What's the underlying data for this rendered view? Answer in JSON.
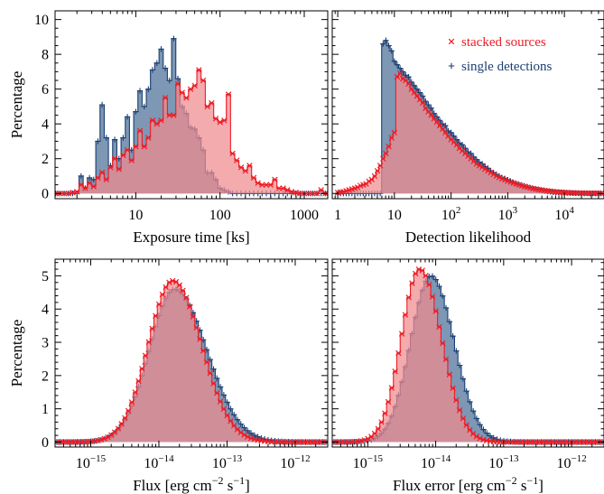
{
  "colors": {
    "stacked": "#ee1c25",
    "stacked_fill": "#f08a8f",
    "single": "#1b3f73",
    "single_fill": "#7d97b4"
  },
  "legend": {
    "stacked": "stacked sources",
    "single": "single detections"
  },
  "chart_data": [
    {
      "type": "area",
      "panel": "top-left",
      "xlabel": "Exposure time [ks]",
      "ylabel": "Percentage",
      "xscale": "log",
      "xlim": [
        1.1,
        1900
      ],
      "ylim": [
        -0.3,
        10.5
      ],
      "yticks": [
        0,
        2,
        4,
        6,
        8,
        10
      ],
      "xtick_labels": [
        "10",
        "100",
        "1000"
      ],
      "xticks": [
        10,
        100,
        1000
      ],
      "series": [
        {
          "key": "single",
          "x": [
            1.12,
            1.25,
            1.41,
            1.58,
            1.78,
            2.0,
            2.24,
            2.51,
            2.82,
            3.16,
            3.55,
            3.98,
            4.47,
            5.01,
            5.62,
            6.31,
            7.08,
            7.94,
            8.91,
            10.0,
            11.2,
            12.6,
            14.1,
            15.8,
            17.8,
            20.0,
            22.4,
            25.1,
            28.2,
            31.6,
            35.5,
            39.8,
            44.7,
            50.1,
            56.2,
            63.1,
            70.8,
            79.4,
            89.1,
            100,
            112,
            126,
            141,
            158,
            178,
            200,
            224,
            251,
            282,
            316,
            355,
            398,
            447,
            501,
            562,
            631,
            708,
            794,
            891,
            1000,
            1122,
            1259,
            1413,
            1585,
            1778
          ],
          "y": [
            0,
            0,
            0,
            0,
            0,
            0,
            1.0,
            0.3,
            0.9,
            0.8,
            3.0,
            5.1,
            3.2,
            1.6,
            3.1,
            2.0,
            3.2,
            4.4,
            2.5,
            4.7,
            5.9,
            5.0,
            6.0,
            7.1,
            7.5,
            8.3,
            7.2,
            6.5,
            8.9,
            6.6,
            5.0,
            4.6,
            3.8,
            3.7,
            3.2,
            2.5,
            1.2,
            1.2,
            0.8,
            0.3,
            0.2,
            0.1,
            0,
            0,
            0,
            0,
            0,
            0,
            0,
            0,
            0,
            0,
            0,
            0,
            0,
            0,
            0,
            0,
            0,
            0,
            0,
            0,
            0,
            0,
            0
          ]
        },
        {
          "key": "stacked",
          "x": [
            1.12,
            1.25,
            1.41,
            1.58,
            1.78,
            2.0,
            2.24,
            2.51,
            2.82,
            3.16,
            3.55,
            3.98,
            4.47,
            5.01,
            5.62,
            6.31,
            7.08,
            7.94,
            8.91,
            10.0,
            11.2,
            12.6,
            14.1,
            15.8,
            17.8,
            20.0,
            22.4,
            25.1,
            28.2,
            31.6,
            35.5,
            39.8,
            44.7,
            50.1,
            56.2,
            63.1,
            70.8,
            79.4,
            89.1,
            100,
            112,
            126,
            141,
            158,
            178,
            200,
            224,
            251,
            282,
            316,
            355,
            398,
            447,
            501,
            562,
            631,
            708,
            794,
            891,
            1000,
            1122,
            1259,
            1413,
            1585,
            1778
          ],
          "y": [
            0,
            0,
            0,
            0,
            0.05,
            0.1,
            0.5,
            0.3,
            0.6,
            0.4,
            0.9,
            1.2,
            0.8,
            1.5,
            2.0,
            1.4,
            2.2,
            2.5,
            1.9,
            2.7,
            3.6,
            2.7,
            3.2,
            4.2,
            4.0,
            4.2,
            5.5,
            4.5,
            4.5,
            6.3,
            5.8,
            5.5,
            6.0,
            6.2,
            7.1,
            6.5,
            5.0,
            5.2,
            4.3,
            4.1,
            4.2,
            5.7,
            2.3,
            1.9,
            1.5,
            1.3,
            1.6,
            0.9,
            0.6,
            0.5,
            0.5,
            0.5,
            0.8,
            0.3,
            0.3,
            0.2,
            0.1,
            0.05,
            0,
            0,
            0,
            0,
            0,
            0.2,
            0
          ]
        }
      ]
    },
    {
      "type": "area",
      "panel": "top-right",
      "xlabel": "Detection likelihood",
      "xscale": "log",
      "xlim": [
        0.8,
        50000
      ],
      "ylim": [
        -0.3,
        10.5
      ],
      "yticks": [
        0,
        2,
        4,
        6,
        8,
        10
      ],
      "xtick_labels": [
        {
          "base": "1",
          "exp": ""
        },
        {
          "base": "10",
          "exp": ""
        },
        {
          "base": "10",
          "exp": "2"
        },
        {
          "base": "10",
          "exp": "3"
        },
        {
          "base": "10",
          "exp": "4"
        }
      ],
      "xticks": [
        1,
        10,
        100,
        1000,
        10000
      ],
      "series": [
        {
          "key": "single",
          "x": [
            1,
            1.12,
            1.26,
            1.41,
            1.58,
            1.78,
            2,
            2.24,
            2.51,
            2.82,
            3.16,
            3.55,
            3.98,
            4.47,
            5.01,
            5.62,
            6.31,
            7.08,
            7.94,
            8.91,
            10,
            11.2,
            12.6,
            14.1,
            15.8,
            17.8,
            20,
            22.4,
            25.1,
            28.2,
            31.6,
            35.5,
            39.8,
            44.7,
            50.1,
            56.2,
            63.1,
            70.8,
            79.4,
            89.1,
            100,
            112,
            126,
            141,
            158,
            178,
            200,
            224,
            251,
            282,
            316,
            355,
            398,
            447,
            501,
            562,
            631,
            708,
            794,
            891,
            1000,
            1122,
            1259,
            1413,
            1585,
            1778,
            1995,
            2239,
            2512,
            2818,
            3162,
            3548,
            3981,
            4467,
            5012,
            5623,
            6310,
            7079,
            7943,
            8913,
            10000,
            11220,
            12590,
            14130,
            15850,
            17780,
            19950,
            22390,
            25120,
            28180,
            31620,
            35480,
            39810,
            44670
          ],
          "y": [
            0,
            0,
            0,
            0,
            0,
            0,
            0,
            0,
            0,
            0,
            0,
            0,
            0,
            0,
            0,
            0,
            8.6,
            8.8,
            8.5,
            8.2,
            7.6,
            7.4,
            7.2,
            7.0,
            6.8,
            6.7,
            6.4,
            6.2,
            6.0,
            5.8,
            5.6,
            5.3,
            5.1,
            4.9,
            4.6,
            4.4,
            4.2,
            4.0,
            3.9,
            3.6,
            3.5,
            3.3,
            3.1,
            2.9,
            2.8,
            2.6,
            2.4,
            2.3,
            2.1,
            1.95,
            1.8,
            1.7,
            1.55,
            1.45,
            1.3,
            1.2,
            1.1,
            1.0,
            0.9,
            0.85,
            0.78,
            0.7,
            0.62,
            0.56,
            0.5,
            0.45,
            0.4,
            0.35,
            0.3,
            0.27,
            0.24,
            0.2,
            0.17,
            0.14,
            0.12,
            0.1,
            0.08,
            0.07,
            0.06,
            0.05,
            0.04,
            0.03,
            0.03,
            0.02,
            0.02,
            0.01,
            0.01,
            0.01,
            0.01,
            0,
            0,
            0,
            0,
            0
          ]
        },
        {
          "key": "stacked",
          "x": [
            1,
            1.12,
            1.26,
            1.41,
            1.58,
            1.78,
            2,
            2.24,
            2.51,
            2.82,
            3.16,
            3.55,
            3.98,
            4.47,
            5.01,
            5.62,
            6.31,
            7.08,
            7.94,
            8.91,
            10,
            11.2,
            12.6,
            14.1,
            15.8,
            17.8,
            20,
            22.4,
            25.1,
            28.2,
            31.6,
            35.5,
            39.8,
            44.7,
            50.1,
            56.2,
            63.1,
            70.8,
            79.4,
            89.1,
            100,
            112,
            126,
            141,
            158,
            178,
            200,
            224,
            251,
            282,
            316,
            355,
            398,
            447,
            501,
            562,
            631,
            708,
            794,
            891,
            1000,
            1122,
            1259,
            1413,
            1585,
            1778,
            1995,
            2239,
            2512,
            2818,
            3162,
            3548,
            3981,
            4467,
            5012,
            5623,
            6310,
            7079,
            7943,
            8913,
            10000,
            11220,
            12590,
            14130,
            15850,
            17780,
            19950,
            22390,
            25120,
            28180,
            31620,
            35480,
            39810,
            44670
          ],
          "y": [
            0.05,
            0.08,
            0.1,
            0.15,
            0.2,
            0.25,
            0.3,
            0.35,
            0.45,
            0.5,
            0.55,
            0.7,
            0.8,
            1.0,
            1.3,
            1.6,
            2.0,
            2.3,
            2.7,
            3.2,
            3.5,
            6.7,
            6.9,
            6.6,
            6.5,
            6.3,
            6.0,
            5.8,
            5.6,
            5.4,
            5.2,
            4.9,
            4.7,
            4.5,
            4.3,
            4.1,
            3.9,
            3.7,
            3.5,
            3.3,
            3.1,
            2.95,
            2.8,
            2.6,
            2.45,
            2.3,
            2.15,
            2.0,
            1.85,
            1.7,
            1.6,
            1.5,
            1.4,
            1.3,
            1.2,
            1.1,
            1.0,
            0.92,
            0.85,
            0.78,
            0.72,
            0.66,
            0.6,
            0.55,
            0.5,
            0.45,
            0.4,
            0.36,
            0.32,
            0.28,
            0.25,
            0.22,
            0.2,
            0.17,
            0.15,
            0.13,
            0.11,
            0.09,
            0.08,
            0.07,
            0.06,
            0.05,
            0.04,
            0.03,
            0.03,
            0.02,
            0.02,
            0.02,
            0.01,
            0.01,
            0.01,
            0.01,
            0.01,
            0.01
          ]
        }
      ]
    },
    {
      "type": "area",
      "panel": "bottom-left",
      "xlabel_parts": [
        "Flux [erg cm",
        "−2",
        " s",
        "−1",
        "]"
      ],
      "ylabel": "Percentage",
      "xscale": "log",
      "xlim": [
        3e-16,
        3e-12
      ],
      "ylim": [
        -0.15,
        5.5
      ],
      "yticks": [
        0,
        1,
        2,
        3,
        4,
        5
      ],
      "xticks": [
        1e-15,
        1e-14,
        1e-13,
        1e-12
      ],
      "xtick_labels": [
        {
          "base": "10",
          "exp": "−15"
        },
        {
          "base": "10",
          "exp": "−14"
        },
        {
          "base": "10",
          "exp": "−13"
        },
        {
          "base": "10",
          "exp": "−12"
        }
      ],
      "series": [
        {
          "key": "single",
          "lognormal": {
            "peak": 4.6,
            "center": 1.7e-14,
            "sigma_dex_left": 0.37,
            "sigma_dex_right": 0.47,
            "n_bins": 80
          }
        },
        {
          "key": "stacked",
          "lognormal": {
            "peak": 4.85,
            "center": 1.6e-14,
            "sigma_dex_left": 0.36,
            "sigma_dex_right": 0.42,
            "n_bins": 80
          }
        }
      ]
    },
    {
      "type": "area",
      "panel": "bottom-right",
      "xlabel_parts": [
        "Flux error [erg cm",
        "−2",
        " s",
        "−1",
        "]"
      ],
      "xscale": "log",
      "xlim": [
        3e-16,
        3e-12
      ],
      "ylim": [
        -0.15,
        5.5
      ],
      "yticks": [
        0,
        1,
        2,
        3,
        4,
        5
      ],
      "xticks": [
        1e-15,
        1e-14,
        1e-13,
        1e-12
      ],
      "xtick_labels": [
        {
          "base": "10",
          "exp": "−15"
        },
        {
          "base": "10",
          "exp": "−14"
        },
        {
          "base": "10",
          "exp": "−13"
        },
        {
          "base": "10",
          "exp": "−12"
        }
      ],
      "series": [
        {
          "key": "single",
          "lognormal": {
            "peak": 5.0,
            "center": 8.5e-15,
            "sigma_dex_left": 0.3,
            "sigma_dex_right": 0.34,
            "n_bins": 80
          }
        },
        {
          "key": "stacked",
          "lognormal": {
            "peak": 5.2,
            "center": 5.8e-15,
            "sigma_dex_left": 0.27,
            "sigma_dex_right": 0.32,
            "n_bins": 80
          }
        }
      ]
    }
  ]
}
